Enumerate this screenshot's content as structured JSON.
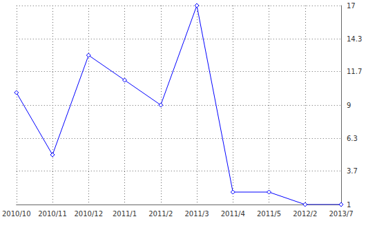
{
  "chart_data": {
    "type": "line",
    "categories": [
      "2010/10",
      "2010/11",
      "2010/12",
      "2011/1",
      "2011/2",
      "2011/3",
      "2011/4",
      "2011/5",
      "2012/2",
      "2013/7"
    ],
    "values": [
      10,
      5,
      13,
      11,
      9,
      17,
      2,
      2,
      1,
      1
    ],
    "color": "#0000ff",
    "marker": "diamond",
    "line_style": "solid",
    "ylim": [
      1,
      17
    ],
    "yticks": [
      1,
      3.7,
      6.3,
      9,
      11.7,
      14.3,
      17
    ],
    "grid": true
  }
}
